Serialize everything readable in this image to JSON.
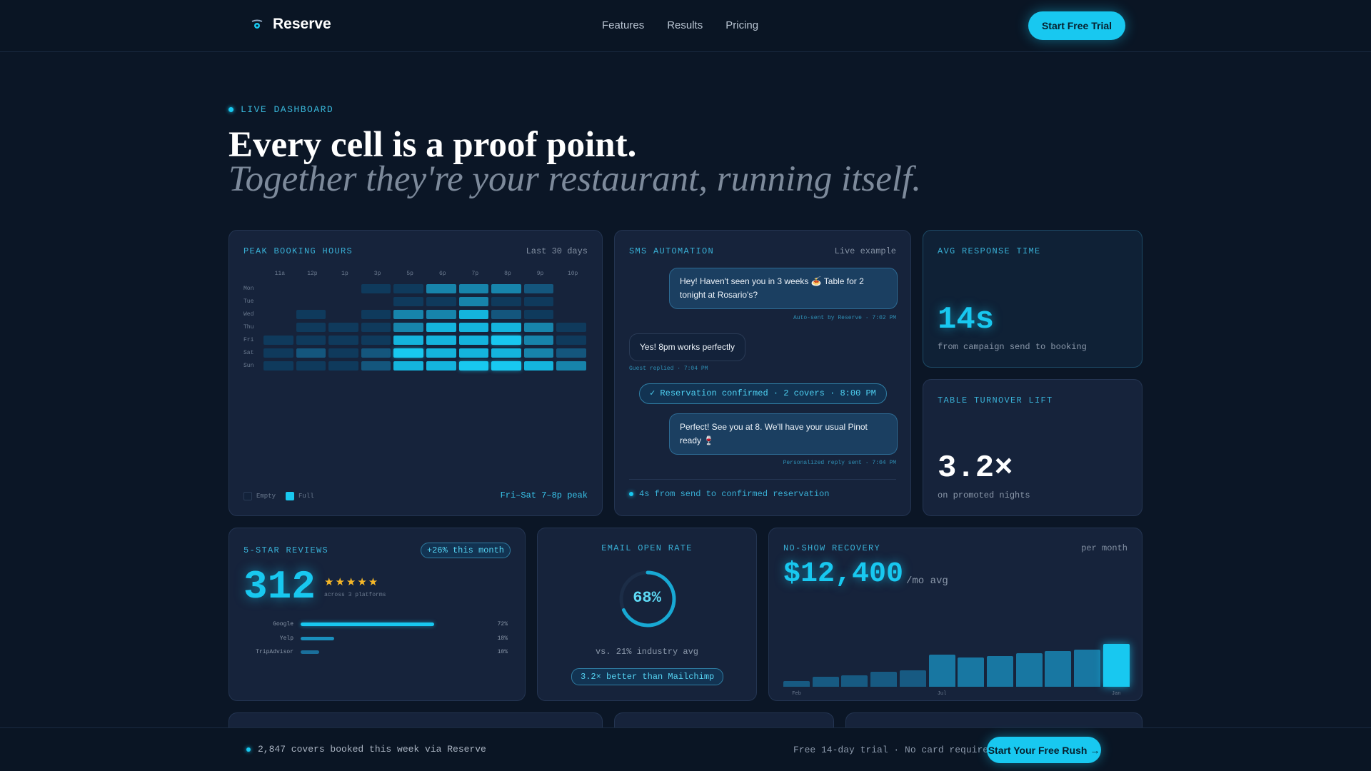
{
  "nav": {
    "brand": "Reserve",
    "links": [
      "Features",
      "Results",
      "Pricing"
    ],
    "cta": "Start Free Trial"
  },
  "hero": {
    "eyebrow": "LIVE DASHBOARD",
    "title": "Every cell is a proof point.",
    "subtitle": "Together they're your restaurant, running itself."
  },
  "peak": {
    "title": "PEAK BOOKING HOURS",
    "meta": "Last 30 days",
    "columns": [
      "11a",
      "12p",
      "1p",
      "3p",
      "5p",
      "6p",
      "7p",
      "8p",
      "9p",
      "10p"
    ],
    "rows": [
      "Mon",
      "Tue",
      "Wed",
      "Thu",
      "Fri",
      "Sat",
      "Sun"
    ],
    "levels": [
      [
        0,
        0,
        0,
        1,
        1,
        3,
        3,
        3,
        2,
        0
      ],
      [
        0,
        0,
        0,
        0,
        1,
        1,
        3,
        1,
        1,
        0
      ],
      [
        0,
        1,
        0,
        1,
        3,
        3,
        4,
        2,
        1,
        0
      ],
      [
        0,
        1,
        1,
        1,
        3,
        4,
        4,
        4,
        3,
        1
      ],
      [
        1,
        1,
        1,
        1,
        4,
        4,
        4,
        5,
        3,
        1
      ],
      [
        1,
        2,
        1,
        2,
        5,
        4,
        4,
        4,
        3,
        2
      ],
      [
        1,
        1,
        1,
        2,
        4,
        4,
        5,
        5,
        4,
        3
      ]
    ],
    "legend_empty": "Empty",
    "legend_full": "Full",
    "peak_note": "Fri–Sat 7–8p peak"
  },
  "sms": {
    "title": "SMS AUTOMATION",
    "meta": "Live example",
    "msg1": "Hey! Haven't seen you in 3 weeks 🍝 Table for 2 tonight at Rosario's?",
    "msg1_meta": "Auto-sent by Reserve · 7:02 PM",
    "msg2": "Yes! 8pm works perfectly",
    "msg2_meta": "Guest replied · 7:04 PM",
    "confirm": "✓ Reservation confirmed · 2 covers · 8:00 PM",
    "msg3": "Perfect! See you at 8. We'll have your usual Pinot ready 🍷",
    "msg3_meta": "Personalized reply sent · 7:04 PM",
    "foot": "4s from send to confirmed reservation"
  },
  "response": {
    "title": "AVG RESPONSE TIME",
    "value": "14s",
    "sub": "from campaign send to booking"
  },
  "turnover": {
    "title": "TABLE TURNOVER LIFT",
    "value": "3.2×",
    "sub": "on promoted nights"
  },
  "reviews": {
    "title": "5-STAR REVIEWS",
    "badge": "+26% this month",
    "value": "312",
    "stars": "★★★★★",
    "sub": "across 3 platforms",
    "platforms": [
      {
        "name": "Google",
        "pct": "72%",
        "fill": 0.72
      },
      {
        "name": "Yelp",
        "pct": "18%",
        "fill": 0.18
      },
      {
        "name": "TripAdvisor",
        "pct": "10%",
        "fill": 0.1
      }
    ]
  },
  "email": {
    "title": "EMAIL OPEN RATE",
    "value": "68%",
    "fraction": 0.68,
    "sub": "vs. 21% industry avg",
    "badge": "3.2× better than Mailchimp"
  },
  "noshow": {
    "title": "NO-SHOW RECOVERY",
    "meta": "per month",
    "value": "$12,400",
    "unit": "/mo avg",
    "chart_data": {
      "type": "bar",
      "months": [
        "Feb",
        "",
        "",
        "",
        "",
        "Jul",
        "",
        "",
        "",
        "",
        "",
        "Jan"
      ],
      "values": [
        12,
        20,
        23,
        30,
        33,
        65,
        58,
        62,
        67,
        71,
        74,
        86
      ],
      "ylim": [
        0,
        100
      ]
    }
  },
  "footer": {
    "left": "2,847 covers booked this week via Reserve",
    "right": "Free 14-day trial · No card required",
    "cta": "Start Your Free Rush →"
  },
  "colors": {
    "accent": "#18c8f0",
    "background": "#0b1626",
    "card": "#16233b"
  }
}
